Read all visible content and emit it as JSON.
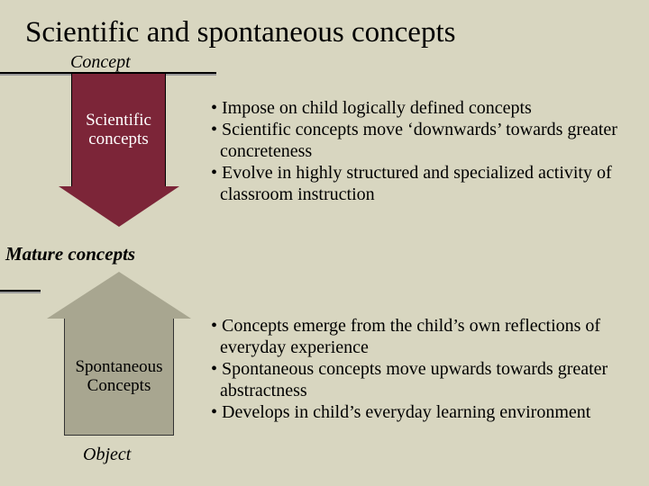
{
  "title": "Scientific and spontaneous concepts",
  "concept_label": "Concept",
  "mature_label": "Mature concepts",
  "object_label": "Object",
  "down_arrow": {
    "line1": "Scientific",
    "line2": "concepts",
    "fill": "#7c2538",
    "text_color": "#ffffff"
  },
  "up_arrow": {
    "line1": "Spontaneous",
    "line2": "Concepts",
    "fill": "#a8a690",
    "text_color": "#000000"
  },
  "bullets_top": {
    "b1": "• Impose on child logically defined concepts",
    "b2": "• Scientific concepts move ‘downwards’ towards greater concreteness",
    "b3": "• Evolve in highly structured and specialized activity of classroom instruction"
  },
  "bullets_bottom": {
    "b1": "• Concepts emerge from the child’s own reflections of everyday experience",
    "b2": "• Spontaneous concepts move upwards towards greater abstractness",
    "b3": "• Develops in child’s everyday learning environment"
  },
  "background_color": "#d8d6c0",
  "font_family": "Times New Roman"
}
